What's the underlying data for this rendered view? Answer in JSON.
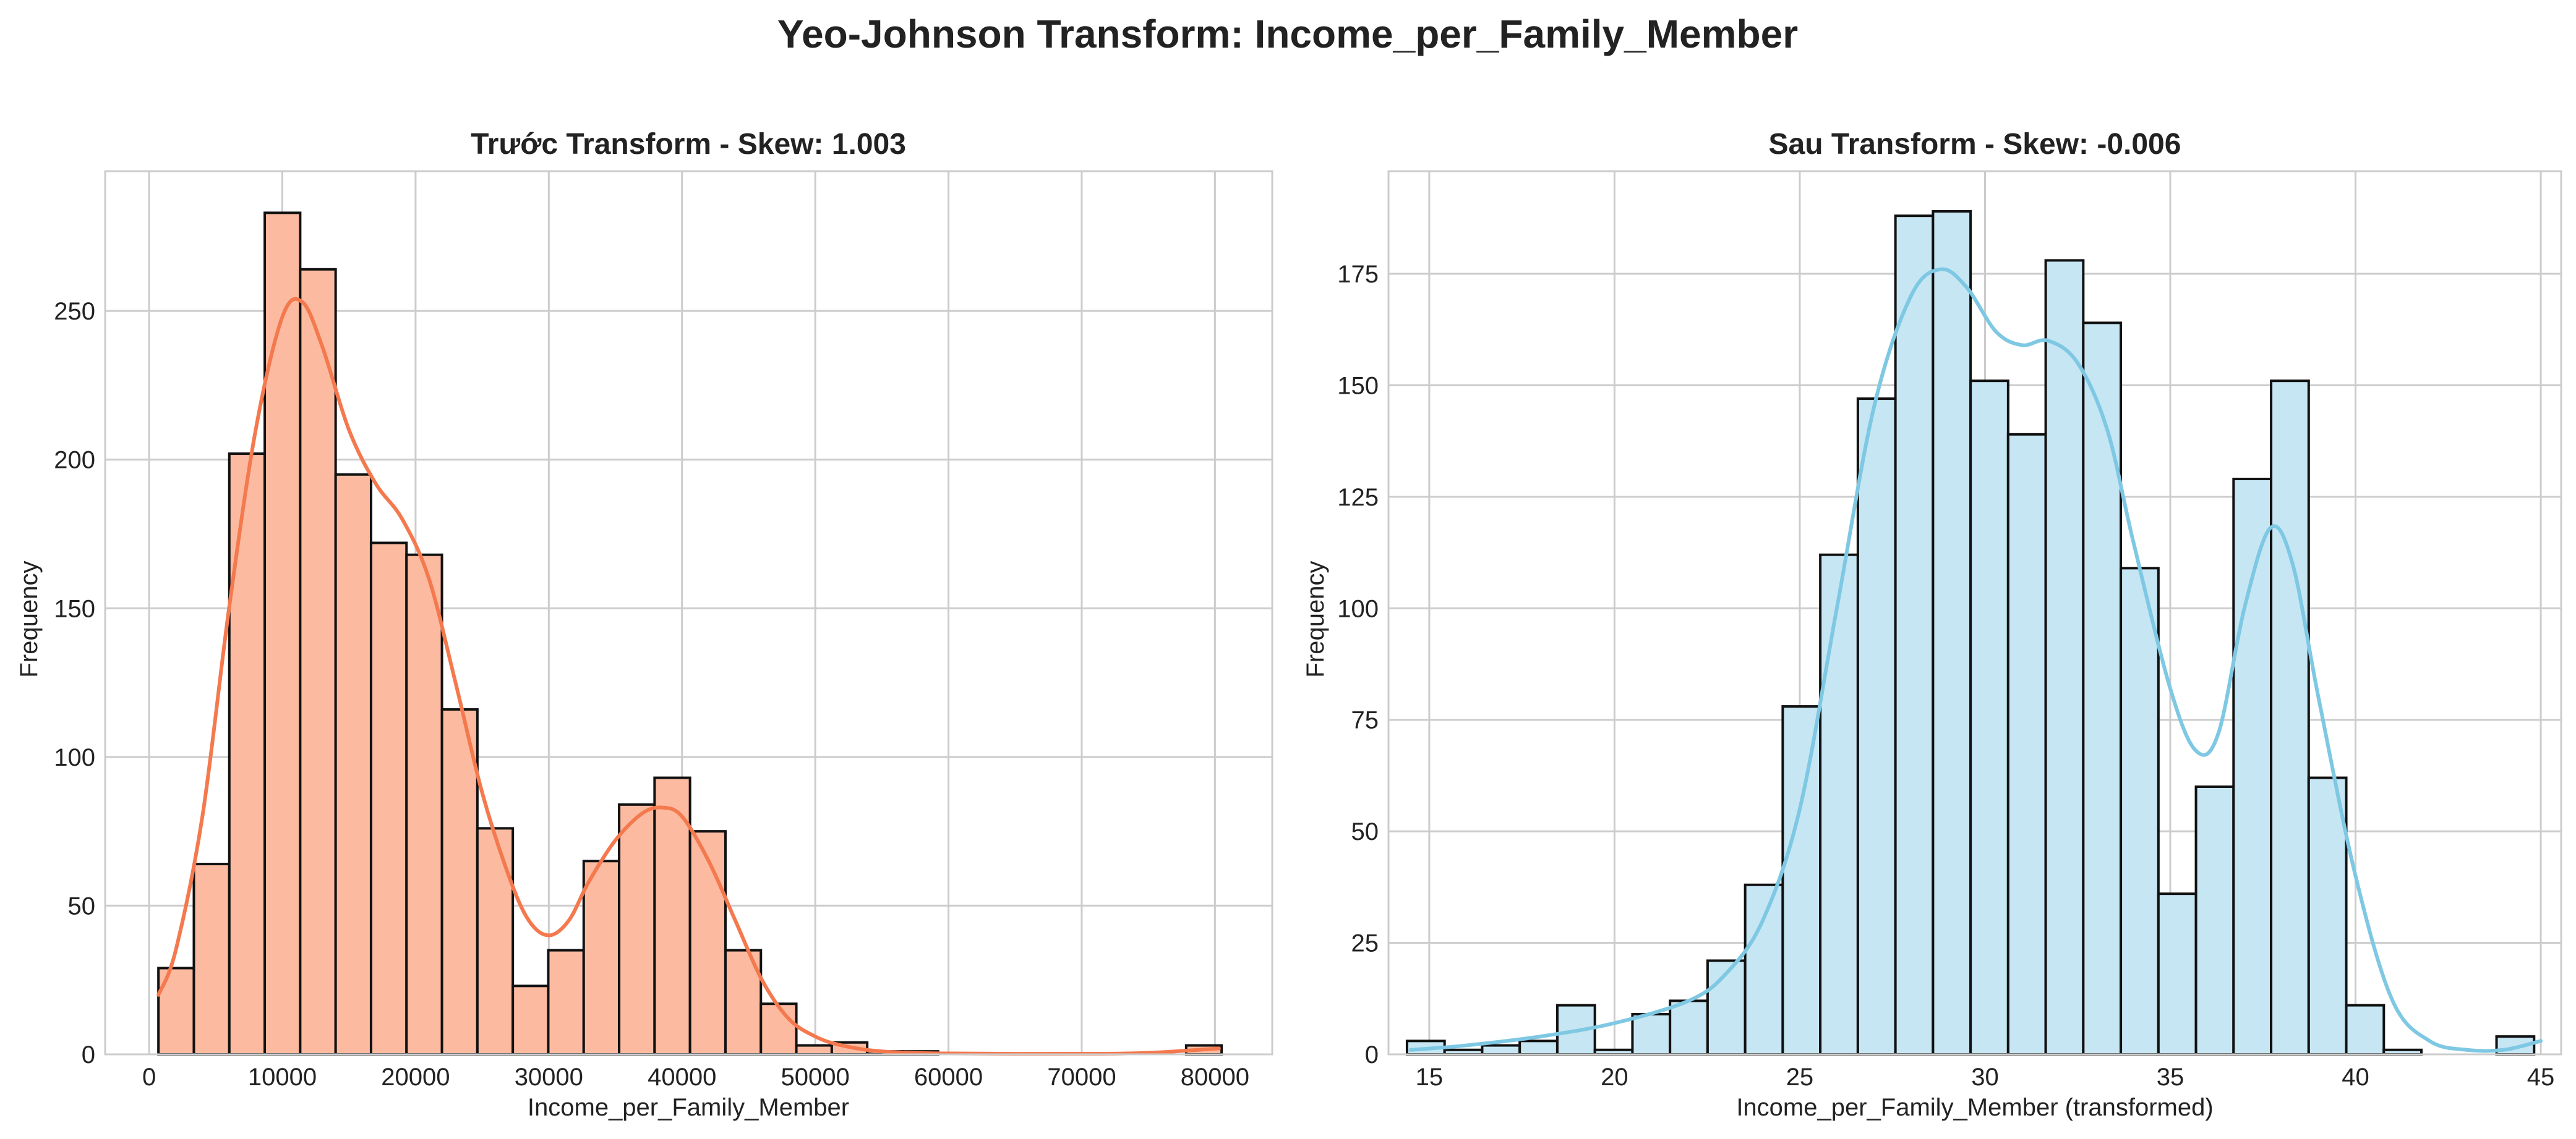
{
  "figure_title": "Yeo-Johnson Transform: Income_per_Family_Member",
  "chart_data": [
    {
      "type": "bar",
      "title": "Trước Transform - Skew: 1.003",
      "xlabel": "Income_per_Family_Member",
      "ylabel": "Frequency",
      "xlim": [
        -3300,
        84300
      ],
      "ylim": [
        0,
        297
      ],
      "xticks": [
        0,
        10000,
        20000,
        30000,
        40000,
        50000,
        60000,
        70000,
        80000
      ],
      "yticks": [
        0,
        50,
        100,
        150,
        200,
        250
      ],
      "bin_start": 700,
      "bin_width": 2660,
      "values": [
        29,
        64,
        202,
        283,
        264,
        195,
        172,
        168,
        116,
        76,
        23,
        35,
        65,
        84,
        93,
        75,
        35,
        17,
        3,
        4,
        1,
        1,
        0,
        0,
        0,
        0,
        0,
        0,
        0,
        3
      ],
      "kde": [
        [
          700,
          20
        ],
        [
          2000,
          35
        ],
        [
          4000,
          80
        ],
        [
          6000,
          150
        ],
        [
          8000,
          210
        ],
        [
          10000,
          248
        ],
        [
          11500,
          253
        ],
        [
          13000,
          238
        ],
        [
          15000,
          210
        ],
        [
          17000,
          192
        ],
        [
          19000,
          180
        ],
        [
          21000,
          160
        ],
        [
          23000,
          125
        ],
        [
          25000,
          88
        ],
        [
          27000,
          60
        ],
        [
          28500,
          45
        ],
        [
          30000,
          40
        ],
        [
          31500,
          45
        ],
        [
          33000,
          58
        ],
        [
          35000,
          72
        ],
        [
          37000,
          81
        ],
        [
          38500,
          83
        ],
        [
          40000,
          80
        ],
        [
          42000,
          65
        ],
        [
          44000,
          45
        ],
        [
          46000,
          25
        ],
        [
          48000,
          12
        ],
        [
          50000,
          6
        ],
        [
          52000,
          3
        ],
        [
          55000,
          1
        ],
        [
          60000,
          0.3
        ],
        [
          70000,
          0.2
        ],
        [
          75000,
          0.5
        ],
        [
          80300,
          2
        ]
      ],
      "colors": {
        "bar_fill": "#fcbba1",
        "bar_edge": "#111111",
        "kde": "#f4794e"
      }
    },
    {
      "type": "bar",
      "title": "Sau Transform - Skew: -0.006",
      "xlabel": "Income_per_Family_Member (transformed)",
      "ylabel": "Frequency",
      "xlim": [
        13.9,
        45.55
      ],
      "ylim": [
        0,
        198
      ],
      "xticks": [
        15,
        20,
        25,
        30,
        35,
        40,
        45
      ],
      "yticks": [
        0,
        25,
        50,
        75,
        100,
        125,
        150,
        175
      ],
      "bin_start": 14.4,
      "bin_width": 1.014,
      "values": [
        3,
        1,
        2,
        3,
        11,
        1,
        9,
        12,
        21,
        38,
        78,
        112,
        147,
        188,
        189,
        151,
        139,
        178,
        164,
        109,
        36,
        60,
        129,
        151,
        62,
        11,
        1,
        0,
        0,
        4
      ],
      "kde": [
        [
          14.5,
          1
        ],
        [
          16,
          2
        ],
        [
          18,
          4
        ],
        [
          20,
          7
        ],
        [
          22,
          12
        ],
        [
          23,
          18
        ],
        [
          24,
          30
        ],
        [
          25,
          55
        ],
        [
          26,
          100
        ],
        [
          27,
          145
        ],
        [
          28,
          170
        ],
        [
          28.8,
          176
        ],
        [
          29.5,
          172
        ],
        [
          30.3,
          162
        ],
        [
          31,
          159
        ],
        [
          31.7,
          160
        ],
        [
          32.5,
          155
        ],
        [
          33.3,
          140
        ],
        [
          34,
          115
        ],
        [
          35,
          82
        ],
        [
          35.7,
          68
        ],
        [
          36.3,
          72
        ],
        [
          37,
          100
        ],
        [
          37.7,
          118
        ],
        [
          38.3,
          110
        ],
        [
          39,
          80
        ],
        [
          40,
          40
        ],
        [
          41,
          12
        ],
        [
          42,
          3
        ],
        [
          43,
          1
        ],
        [
          44,
          1
        ],
        [
          45,
          3
        ]
      ],
      "colors": {
        "bar_fill": "#c6e6f3",
        "bar_edge": "#111111",
        "kde": "#7ec8e3"
      }
    }
  ]
}
